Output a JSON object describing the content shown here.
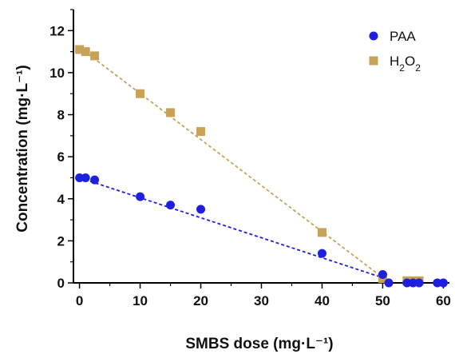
{
  "chart_data": {
    "type": "scatter",
    "xlabel": "SMBS dose (mg·L⁻¹)",
    "ylabel": "Concentration (mg·L⁻¹)",
    "xlim": [
      -1,
      61
    ],
    "ylim": [
      0,
      13
    ],
    "xticks": [
      "0",
      "10",
      "20",
      "30",
      "40",
      "50",
      "60"
    ],
    "yticks": [
      "0",
      "2",
      "4",
      "6",
      "8",
      "10",
      "12"
    ],
    "grid": false,
    "legend_position": "top-right",
    "series": [
      {
        "name": "PAA",
        "color": "#1f1fe0",
        "marker": "circle",
        "points": [
          [
            0,
            5.0
          ],
          [
            1,
            5.0
          ],
          [
            2.5,
            4.9
          ],
          [
            10,
            4.1
          ],
          [
            15,
            3.7
          ],
          [
            20,
            3.5
          ],
          [
            40,
            1.4
          ],
          [
            50,
            0.4
          ],
          [
            51,
            0.0
          ],
          [
            54,
            0.0
          ],
          [
            55,
            0.0
          ],
          [
            56,
            0.0
          ],
          [
            59,
            0.0
          ],
          [
            60,
            0.0
          ]
        ],
        "fit": [
          [
            0,
            5.0
          ],
          [
            51,
            0.15
          ]
        ]
      },
      {
        "name": "H2O2",
        "color": "#c9a25a",
        "marker": "square",
        "points": [
          [
            0,
            11.1
          ],
          [
            1,
            11.0
          ],
          [
            2.5,
            10.8
          ],
          [
            10,
            9.0
          ],
          [
            15,
            8.1
          ],
          [
            20,
            7.2
          ],
          [
            40,
            2.4
          ],
          [
            50,
            0.2
          ],
          [
            54,
            0.1
          ],
          [
            55,
            0.1
          ],
          [
            56,
            0.1
          ]
        ],
        "fit": [
          [
            0,
            11.2
          ],
          [
            50,
            0.25
          ]
        ]
      }
    ]
  }
}
